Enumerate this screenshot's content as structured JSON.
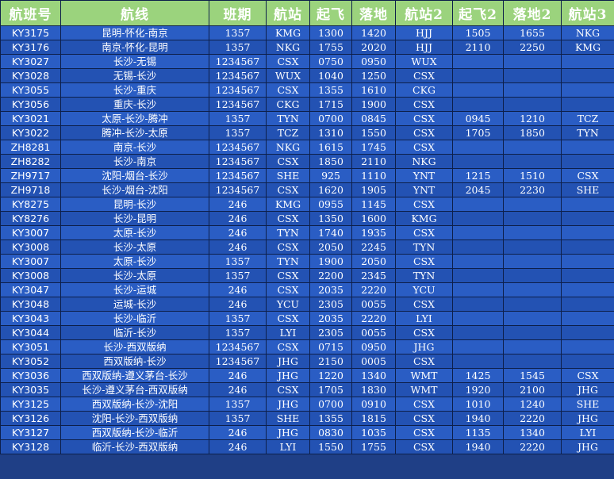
{
  "headers": [
    "航班号",
    "航线",
    "班期",
    "航站",
    "起飞",
    "落地",
    "航站2",
    "起飞2",
    "落地2",
    "航站3"
  ],
  "rows": [
    [
      "KY3175",
      "昆明-怀化-南京",
      "1357",
      "KMG",
      "1300",
      "1420",
      "HJJ",
      "1505",
      "1655",
      "NKG"
    ],
    [
      "KY3176",
      "南京-怀化-昆明",
      "1357",
      "NKG",
      "1755",
      "2020",
      "HJJ",
      "2110",
      "2250",
      "KMG"
    ],
    [
      "KY3027",
      "长沙-无锡",
      "1234567",
      "CSX",
      "0750",
      "0950",
      "WUX",
      "",
      "",
      ""
    ],
    [
      "KY3028",
      "无锡-长沙",
      "1234567",
      "WUX",
      "1040",
      "1250",
      "CSX",
      "",
      "",
      ""
    ],
    [
      "KY3055",
      "长沙-重庆",
      "1234567",
      "CSX",
      "1355",
      "1610",
      "CKG",
      "",
      "",
      ""
    ],
    [
      "KY3056",
      "重庆-长沙",
      "1234567",
      "CKG",
      "1715",
      "1900",
      "CSX",
      "",
      "",
      ""
    ],
    [
      "KY3021",
      "太原-长沙-腾冲",
      "1357",
      "TYN",
      "0700",
      "0845",
      "CSX",
      "0945",
      "1210",
      "TCZ"
    ],
    [
      "KY3022",
      "腾冲-长沙-太原",
      "1357",
      "TCZ",
      "1310",
      "1550",
      "CSX",
      "1705",
      "1850",
      "TYN"
    ],
    [
      "ZH8281",
      "南京-长沙",
      "1234567",
      "NKG",
      "1615",
      "1745",
      "CSX",
      "",
      "",
      ""
    ],
    [
      "ZH8282",
      "长沙-南京",
      "1234567",
      "CSX",
      "1850",
      "2110",
      "NKG",
      "",
      "",
      ""
    ],
    [
      "ZH9717",
      "沈阳-烟台-长沙",
      "1234567",
      "SHE",
      "925",
      "1110",
      "YNT",
      "1215",
      "1510",
      "CSX"
    ],
    [
      "ZH9718",
      "长沙-烟台-沈阳",
      "1234567",
      "CSX",
      "1620",
      "1905",
      "YNT",
      "2045",
      "2230",
      "SHE"
    ],
    [
      "KY8275",
      "昆明-长沙",
      "246",
      "KMG",
      "0955",
      "1145",
      "CSX",
      "",
      "",
      ""
    ],
    [
      "KY8276",
      "长沙-昆明",
      "246",
      "CSX",
      "1350",
      "1600",
      "KMG",
      "",
      "",
      ""
    ],
    [
      "KY3007",
      "太原-长沙",
      "246",
      "TYN",
      "1740",
      "1935",
      "CSX",
      "",
      "",
      ""
    ],
    [
      "KY3008",
      "长沙-太原",
      "246",
      "CSX",
      "2050",
      "2245",
      "TYN",
      "",
      "",
      ""
    ],
    [
      "KY3007",
      "太原-长沙",
      "1357",
      "TYN",
      "1900",
      "2050",
      "CSX",
      "",
      "",
      ""
    ],
    [
      "KY3008",
      "长沙-太原",
      "1357",
      "CSX",
      "2200",
      "2345",
      "TYN",
      "",
      "",
      ""
    ],
    [
      "KY3047",
      "长沙-运城",
      "246",
      "CSX",
      "2035",
      "2220",
      "YCU",
      "",
      "",
      ""
    ],
    [
      "KY3048",
      "运城-长沙",
      "246",
      "YCU",
      "2305",
      "0055",
      "CSX",
      "",
      "",
      ""
    ],
    [
      "KY3043",
      "长沙-临沂",
      "1357",
      "CSX",
      "2035",
      "2220",
      "LYI",
      "",
      "",
      ""
    ],
    [
      "KY3044",
      "临沂-长沙",
      "1357",
      "LYI",
      "2305",
      "0055",
      "CSX",
      "",
      "",
      ""
    ],
    [
      "KY3051",
      "长沙-西双版纳",
      "1234567",
      "CSX",
      "0715",
      "0950",
      "JHG",
      "",
      "",
      ""
    ],
    [
      "KY3052",
      "西双版纳-长沙",
      "1234567",
      "JHG",
      "2150",
      "0005",
      "CSX",
      "",
      "",
      ""
    ],
    [
      "KY3036",
      "西双版纳-遵义茅台-长沙",
      "246",
      "JHG",
      "1220",
      "1340",
      "WMT",
      "1425",
      "1545",
      "CSX"
    ],
    [
      "KY3035",
      "长沙-遵义茅台-西双版纳",
      "246",
      "CSX",
      "1705",
      "1830",
      "WMT",
      "1920",
      "2100",
      "JHG"
    ],
    [
      "KY3125",
      "西双版纳-长沙-沈阳",
      "1357",
      "JHG",
      "0700",
      "0910",
      "CSX",
      "1010",
      "1240",
      "SHE"
    ],
    [
      "KY3126",
      "沈阳-长沙-西双版纳",
      "1357",
      "SHE",
      "1355",
      "1815",
      "CSX",
      "1940",
      "2220",
      "JHG"
    ],
    [
      "KY3127",
      "西双版纳-长沙-临沂",
      "246",
      "JHG",
      "0830",
      "1035",
      "CSX",
      "1135",
      "1340",
      "LYI"
    ],
    [
      "KY3128",
      "临沂-长沙-西双版纳",
      "246",
      "LYI",
      "1550",
      "1755",
      "CSX",
      "1940",
      "2220",
      "JHG"
    ]
  ]
}
